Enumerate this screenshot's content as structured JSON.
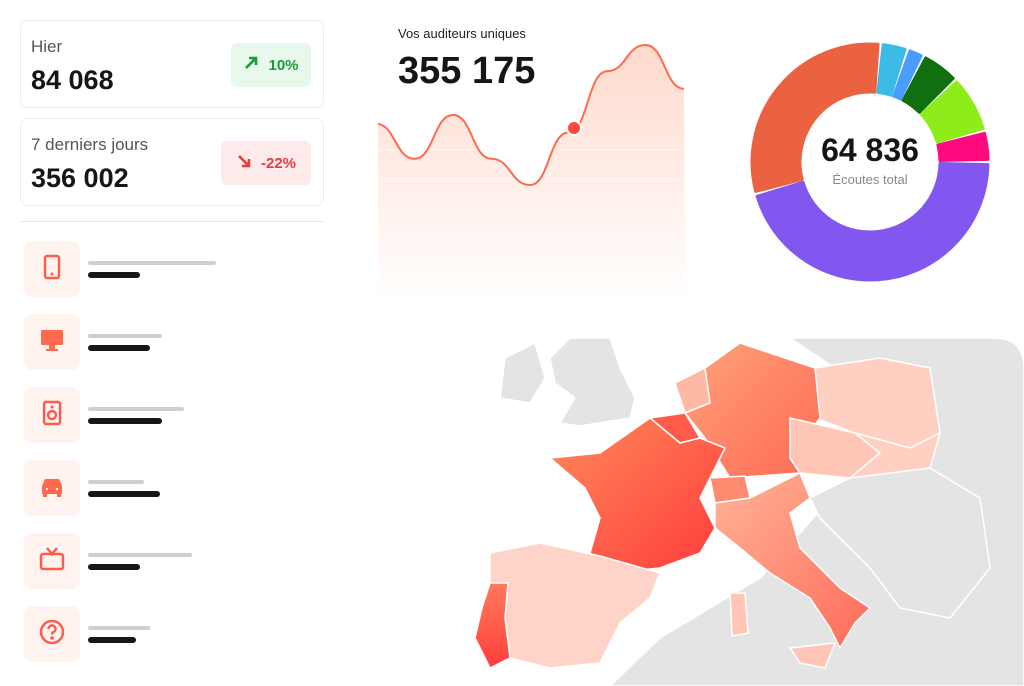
{
  "stats": [
    {
      "label": "Hier",
      "value": "84 068",
      "change": "10%",
      "trend": "up",
      "badge_bg": "#e8f8ec",
      "badge_color": "#1a9a3a"
    },
    {
      "label": "7 derniers jours",
      "value": "356 002",
      "change": "-22%",
      "trend": "down",
      "badge_bg": "#fdeaea",
      "badge_color": "#e8393f"
    }
  ],
  "devices": [
    {
      "icon": "tablet-icon"
    },
    {
      "icon": "monitor-icon"
    },
    {
      "icon": "speaker-icon"
    },
    {
      "icon": "car-icon"
    },
    {
      "icon": "tv-icon"
    },
    {
      "icon": "question-icon"
    }
  ],
  "listeners": {
    "title": "Vos auditeurs uniques",
    "value": "355 175",
    "series": [
      0.55,
      0.35,
      0.6,
      0.35,
      0.2,
      0.5,
      0.85,
      1.0,
      0.75
    ],
    "line_color": "#ff6a4d"
  },
  "donut": {
    "total": "64 836",
    "label": "Écoutes total",
    "segments": [
      {
        "value": 43,
        "color": "#8257f0"
      },
      {
        "value": 29,
        "color": "#eb6241"
      },
      {
        "value": 3.5,
        "color": "#3bbce4"
      },
      {
        "value": 2.2,
        "color": "#4a9cff"
      },
      {
        "value": 5,
        "color": "#107010"
      },
      {
        "value": 7.5,
        "color": "#8eec1a"
      },
      {
        "value": 4,
        "color": "#ff0a7e"
      }
    ]
  }
}
